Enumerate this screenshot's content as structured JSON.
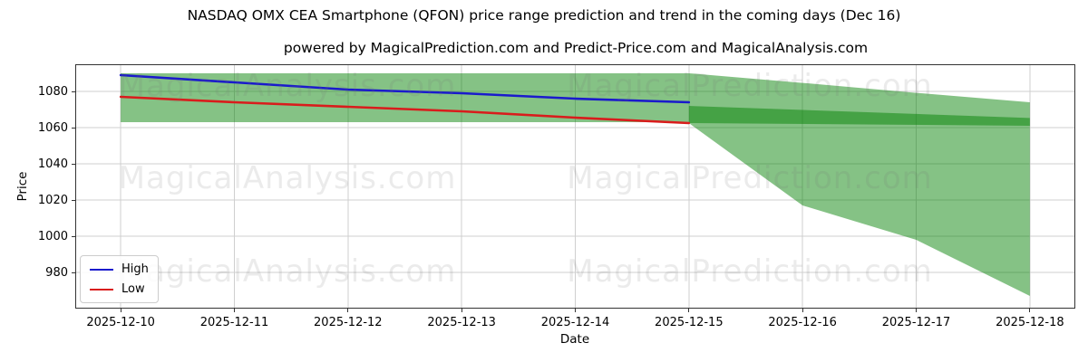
{
  "chart_data": {
    "type": "line",
    "title": "NASDAQ OMX CEA Smartphone (QFON) price range prediction and trend in the coming days (Dec 16)",
    "subtitle": "powered by MagicalPrediction.com and Predict-Price.com and MagicalAnalysis.com",
    "xlabel": "Date",
    "ylabel": "Price",
    "x_tick_labels": [
      "2025-12-10",
      "2025-12-11",
      "2025-12-12",
      "2025-12-13",
      "2025-12-14",
      "2025-12-15",
      "2025-12-16",
      "2025-12-17",
      "2025-12-18"
    ],
    "yticks": [
      980,
      1000,
      1020,
      1040,
      1060,
      1080
    ],
    "ylim": [
      960,
      1095
    ],
    "xlim_day_index": [
      -0.4,
      8.4
    ],
    "grid": true,
    "grid_color": "#cfcfcf",
    "legend_position": "lower left",
    "series": [
      {
        "name": "High",
        "color": "#1a1acc",
        "x": [
          0,
          1,
          2,
          3,
          4,
          5
        ],
        "values": [
          1089,
          1085,
          1081,
          1079,
          1076,
          1074
        ]
      },
      {
        "name": "Low",
        "color": "#d91c1c",
        "x": [
          0,
          1,
          2,
          3,
          4,
          5
        ],
        "values": [
          1077,
          1074,
          1071.5,
          1069,
          1065.5,
          1062.5
        ]
      }
    ],
    "bands": [
      {
        "name": "observed-range",
        "x": [
          0,
          5
        ],
        "top": [
          1090,
          1090
        ],
        "bottom": [
          1063,
          1063
        ],
        "color": "#008000",
        "opacity": 0.48
      },
      {
        "name": "forecast-cone",
        "x": [
          5,
          6,
          7,
          8
        ],
        "top": [
          1090,
          1084.7,
          1079.2,
          1074
        ],
        "bottom": [
          1062.5,
          1017,
          998,
          967
        ],
        "color": "#008000",
        "opacity": 0.48
      },
      {
        "name": "forecast-trend-band",
        "x": [
          5,
          8
        ],
        "top": [
          1072,
          1065.3
        ],
        "bottom": [
          1062.5,
          1061
        ],
        "color": "#008000",
        "opacity": 0.48
      }
    ],
    "watermarks": [
      "MagicalAnalysis.com",
      "MagicalPrediction.com"
    ]
  }
}
